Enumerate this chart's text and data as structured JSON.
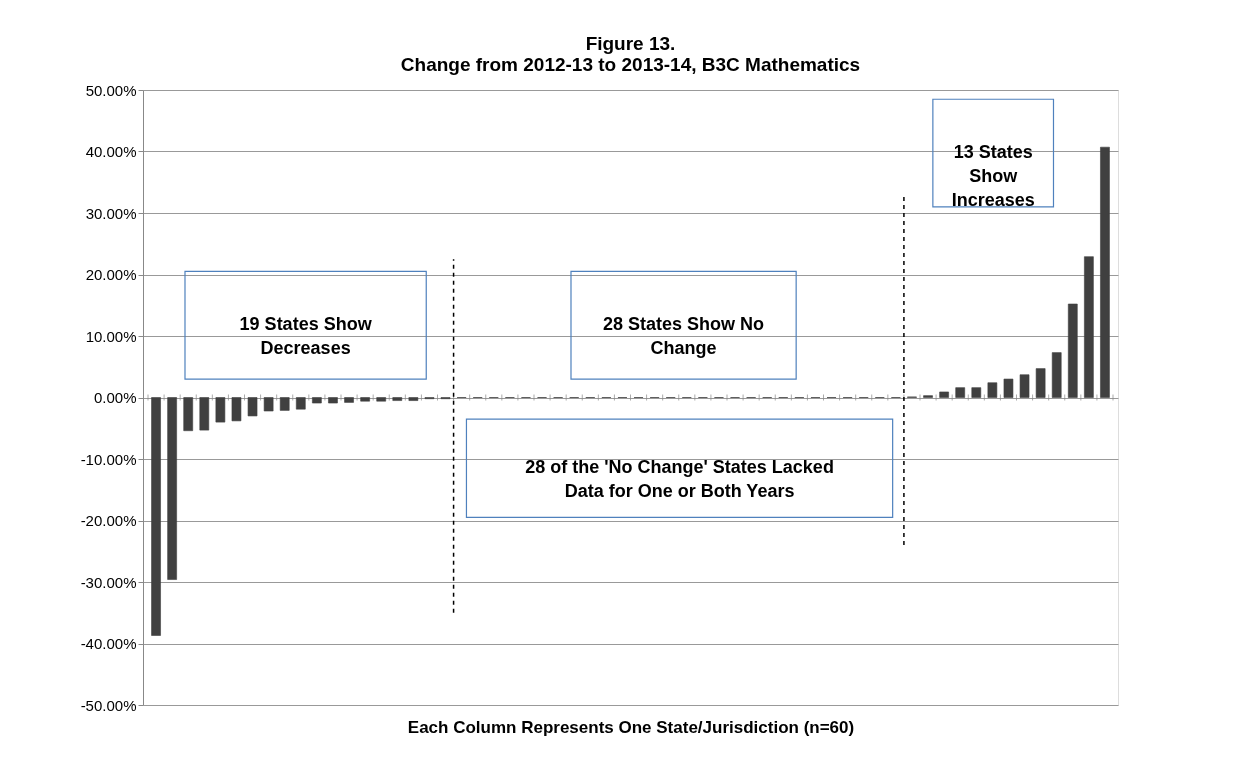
{
  "chart_data": {
    "type": "bar",
    "title": "Figure 13.\nChange from 2012-13 to 2013-14, B3C Mathematics",
    "xlabel": "Each Column Represents One State/Jurisdiction (n=60)",
    "categories": [
      null,
      null,
      null,
      null,
      null,
      null,
      null,
      null,
      null,
      null,
      null,
      null,
      null,
      null,
      null,
      null,
      null,
      null,
      null,
      null,
      null,
      null,
      null,
      null,
      null,
      null,
      null,
      null,
      null,
      null,
      null,
      null,
      null,
      null,
      null,
      null,
      null,
      null,
      null,
      null,
      null,
      null,
      null,
      null,
      null,
      null,
      null,
      null,
      null,
      null,
      null,
      null,
      null,
      null,
      null,
      null,
      null,
      null,
      null,
      null
    ],
    "values": [
      -38.7,
      -29.6,
      -5.4,
      -5.3,
      -4.0,
      -3.8,
      -3.0,
      -2.2,
      -2.1,
      -1.9,
      -0.9,
      -0.9,
      -0.8,
      -0.6,
      -0.6,
      -0.5,
      -0.5,
      -0.2,
      -0.2,
      0,
      0,
      0,
      0,
      0,
      0,
      0,
      0,
      0,
      0,
      0,
      0,
      0,
      0,
      0,
      0,
      0,
      0,
      0,
      0,
      0,
      0,
      0,
      0,
      0,
      0,
      0,
      0,
      0.1,
      0.3,
      0.9,
      1.6,
      1.6,
      2.4,
      3.0,
      3.7,
      4.7,
      7.3,
      15.2,
      22.9,
      40.7
    ],
    "color": "#404040",
    "ylim": [
      -50,
      50
    ],
    "yticks": [
      {
        "value": -50,
        "label": "-50.00%"
      },
      {
        "value": -40,
        "label": "-40.00%"
      },
      {
        "value": -30,
        "label": "-30.00%"
      },
      {
        "value": -20,
        "label": "-20.00%"
      },
      {
        "value": -10,
        "label": "-10.00%"
      },
      {
        "value": 0,
        "label": "0.00%"
      },
      {
        "value": 10,
        "label": "10.00%"
      },
      {
        "value": 20,
        "label": "20.00%"
      },
      {
        "value": 30,
        "label": "30.00%"
      },
      {
        "value": 40,
        "label": "40.00%"
      },
      {
        "value": 50,
        "label": "50.00%"
      }
    ],
    "grid": "y",
    "annotations": [
      "19 States Show\nDecreases",
      "28 States Show No\nChange",
      "13 States\nShow\nIncreases",
      "28 of the 'No Change' States Lacked\nData for One or Both Years"
    ]
  }
}
